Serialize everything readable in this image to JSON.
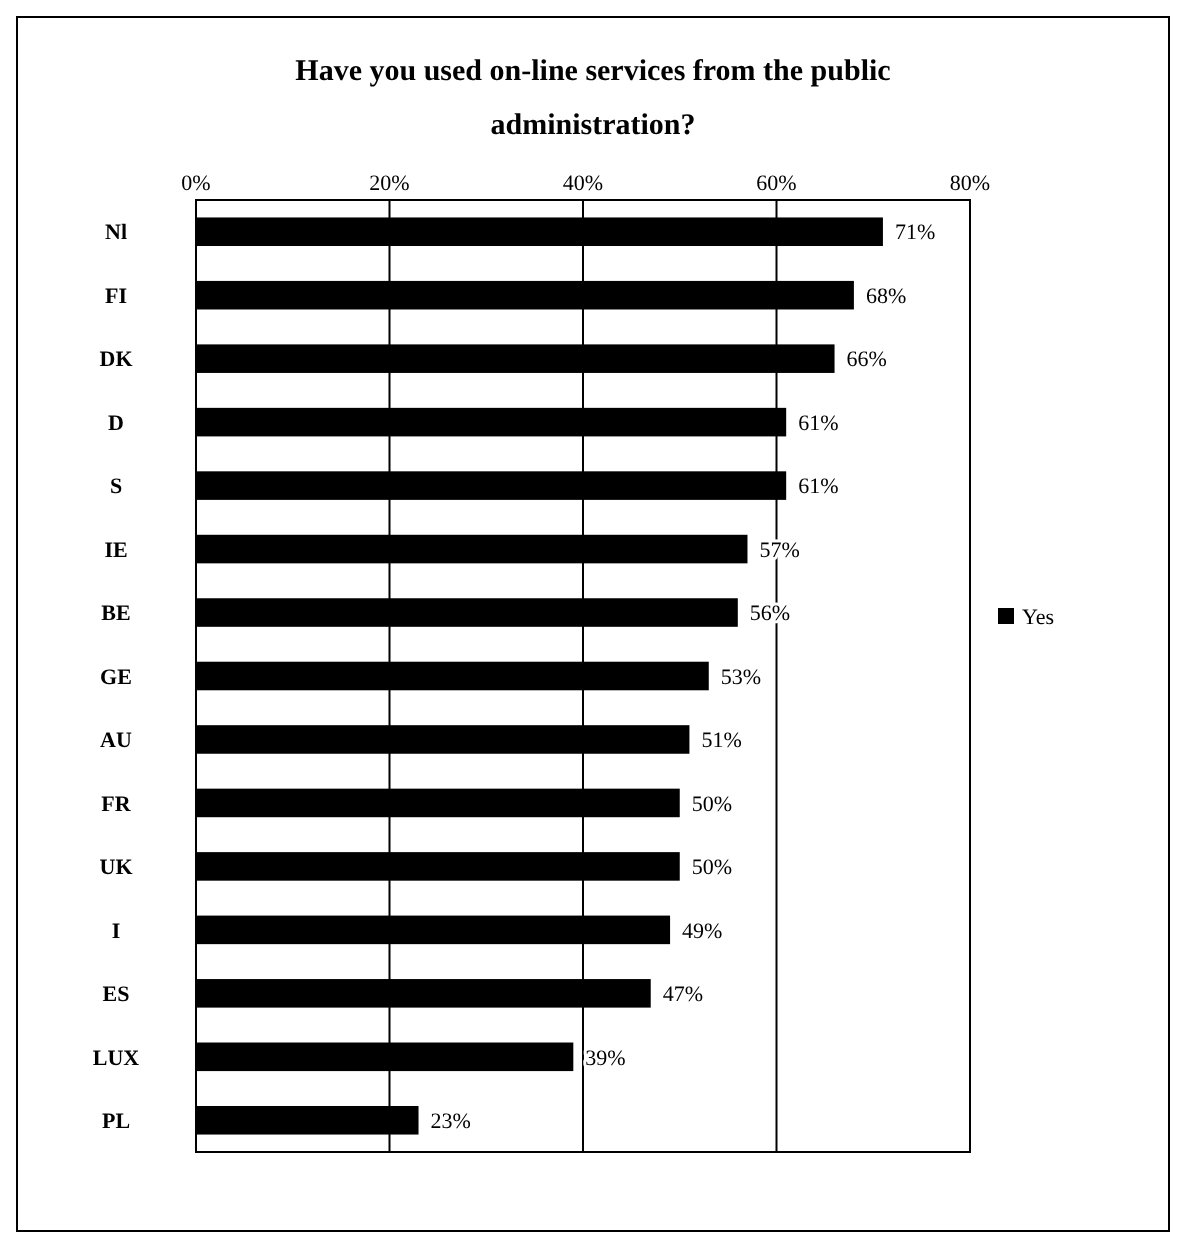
{
  "chart_data": {
    "type": "bar",
    "orientation": "horizontal",
    "title": "Have you used on-line services from the public administration?",
    "categories": [
      "Nl",
      "FI",
      "DK",
      "D",
      "S",
      "IE",
      "BE",
      "GE",
      "AU",
      "FR",
      "UK",
      "I",
      "ES",
      "LUX",
      "PL"
    ],
    "series": [
      {
        "name": "Yes",
        "color": "#000000",
        "values": [
          71,
          68,
          66,
          61,
          61,
          57,
          56,
          53,
          51,
          50,
          50,
          49,
          47,
          39,
          23
        ],
        "value_labels": [
          "71%",
          "68%",
          "66%",
          "61%",
          "61%",
          "57%",
          "56%",
          "53%",
          "51%",
          "50%",
          "50%",
          "49%",
          "47%",
          "39%",
          "23%"
        ]
      }
    ],
    "xlim": [
      0,
      80
    ],
    "xticks": [
      {
        "value": 0,
        "label": "0%"
      },
      {
        "value": 20,
        "label": "20%"
      },
      {
        "value": 40,
        "label": "40%"
      },
      {
        "value": 60,
        "label": "60%"
      },
      {
        "value": 80,
        "label": "80%"
      }
    ],
    "grid": "x",
    "legend": "right"
  }
}
